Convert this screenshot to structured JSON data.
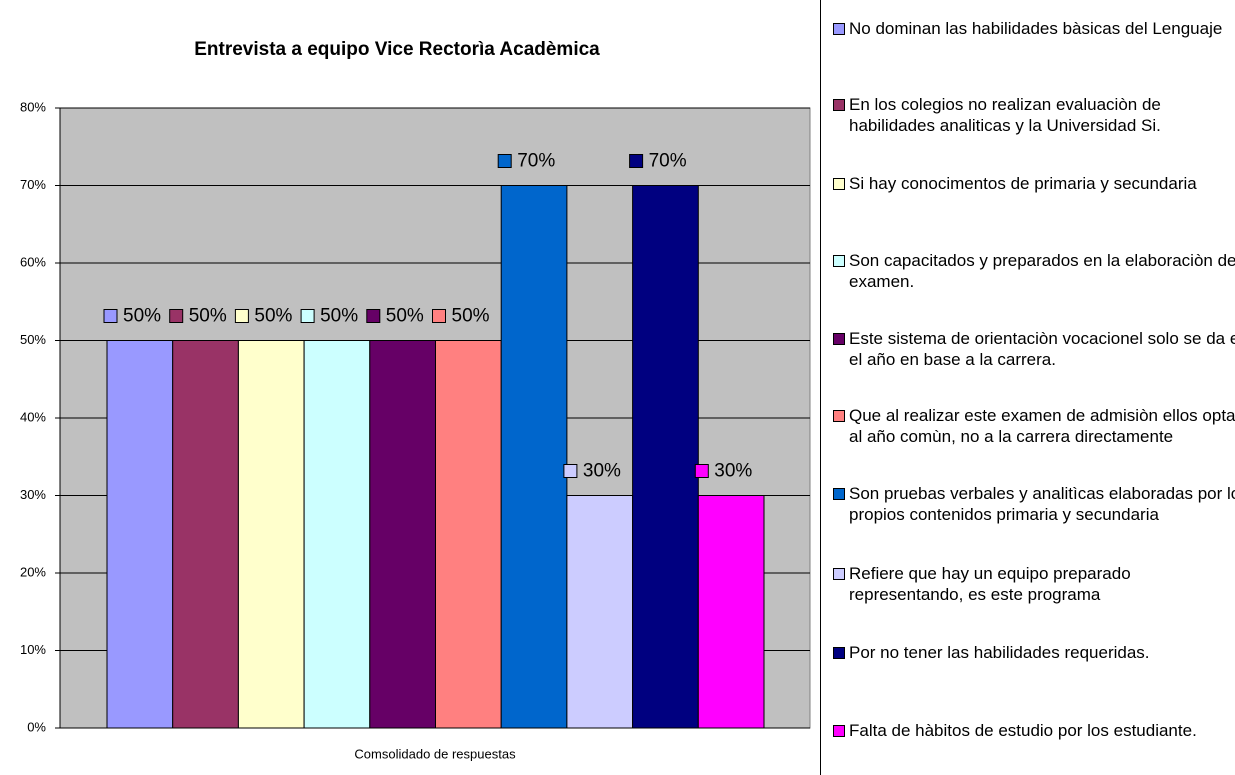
{
  "chart_data": {
    "type": "bar",
    "title": "Entrevista a equipo Vice Rectorìa Acadèmica",
    "categories": [
      "Comsolidado de respuestas"
    ],
    "series": [
      {
        "name": "No dominan las habilidades bàsicas del Lenguaje",
        "color": "#9999ff",
        "values": [
          50
        ],
        "value_labels": [
          "50%"
        ]
      },
      {
        "name": "En los colegios no realizan evaluaciòn de habilidades analiticas y la Universidad Si.",
        "color": "#993366",
        "values": [
          50
        ],
        "value_labels": [
          "50%"
        ]
      },
      {
        "name": "Si hay conocimentos de primaria y secundaria",
        "color": "#ffffcc",
        "values": [
          50
        ],
        "value_labels": [
          "50%"
        ]
      },
      {
        "name": "Son capacitados y preparados en la elaboraciòn del examen.",
        "color": "#ccffff",
        "values": [
          50
        ],
        "value_labels": [
          "50%"
        ]
      },
      {
        "name": "Este sistema de orientaciòn vocacionel solo se da en el año en base a la carrera.",
        "color": "#660066",
        "values": [
          50
        ],
        "value_labels": [
          "50%"
        ]
      },
      {
        "name": "Que al realizar este examen de admisiòn ellos optan al año comùn, no a la carrera directamente",
        "color": "#ff8080",
        "values": [
          50
        ],
        "value_labels": [
          "50%"
        ]
      },
      {
        "name": "Son pruebas verbales y analitìcas elaboradas por los propios contenidos primaria y secundaria",
        "color": "#0066cc",
        "values": [
          70
        ],
        "value_labels": [
          "70%"
        ]
      },
      {
        "name": "Refiere que hay un equipo preparado representando, es este programa",
        "color": "#ccccff",
        "values": [
          30
        ],
        "value_labels": [
          "30%"
        ]
      },
      {
        "name": "Por no tener las habilidades requeridas.",
        "color": "#000080",
        "values": [
          70
        ],
        "value_labels": [
          "70%"
        ]
      },
      {
        "name": "Falta de hàbitos de estudio por los estudiante.",
        "color": "#ff00ff",
        "values": [
          30
        ],
        "value_labels": [
          "30%"
        ]
      }
    ],
    "ylim": [
      0,
      80
    ],
    "yticks": [
      {
        "value": 0,
        "label": "0%"
      },
      {
        "value": 10,
        "label": "10%"
      },
      {
        "value": 20,
        "label": "20%"
      },
      {
        "value": 30,
        "label": "30%"
      },
      {
        "value": 40,
        "label": "40%"
      },
      {
        "value": 50,
        "label": "50%"
      },
      {
        "value": 60,
        "label": "60%"
      },
      {
        "value": 70,
        "label": "70%"
      },
      {
        "value": 80,
        "label": "80%"
      }
    ],
    "grid": true,
    "legend": "right"
  }
}
